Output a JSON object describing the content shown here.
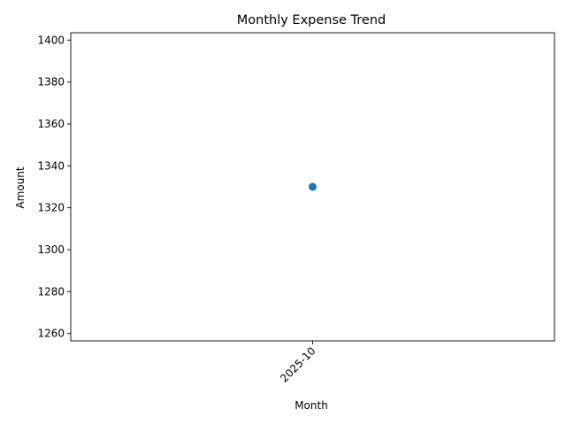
{
  "chart_data": {
    "type": "line",
    "title": "Monthly Expense Trend",
    "xlabel": "Month",
    "ylabel": "Amount",
    "categories": [
      "2025-10"
    ],
    "series": [
      {
        "values": [
          1330
        ],
        "color": "#1f77b4",
        "marker": "circle"
      }
    ],
    "ylim": [
      1256.5,
      1403.5
    ],
    "yticks": [
      1260,
      1280,
      1300,
      1320,
      1340,
      1360,
      1380,
      1400
    ],
    "xtick_rotation": 45,
    "grid": false,
    "legend": "none"
  }
}
